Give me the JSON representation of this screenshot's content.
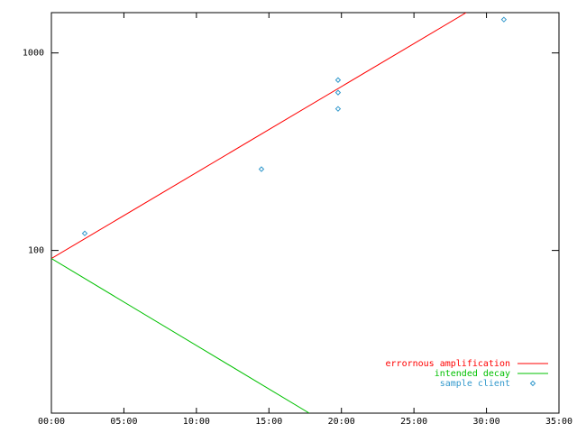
{
  "chart_data": {
    "type": "line",
    "ylog": true,
    "xlim": [
      0,
      2100
    ],
    "xticks": [
      {
        "value": 0,
        "label": "00:00"
      },
      {
        "value": 300,
        "label": "05:00"
      },
      {
        "value": 600,
        "label": "10:00"
      },
      {
        "value": 900,
        "label": "15:00"
      },
      {
        "value": 1200,
        "label": "20:00"
      },
      {
        "value": 1500,
        "label": "25:00"
      },
      {
        "value": 1800,
        "label": "30:00"
      },
      {
        "value": 2100,
        "label": "35:00"
      }
    ],
    "ylim": [
      15,
      1600
    ],
    "yticks": [
      100,
      1000
    ],
    "legend": "bottom-right",
    "series": [
      {
        "name": "errornous amplification",
        "color": "#ff0000",
        "style": "line",
        "x": [
          0,
          1716
        ],
        "values": [
          91,
          1600
        ]
      },
      {
        "name": "intended decay",
        "color": "#00c000",
        "style": "line",
        "x": [
          0,
          1067
        ],
        "values": [
          91,
          15
        ]
      },
      {
        "name": "sample client",
        "color": "#3399cc",
        "style": "points",
        "x": [
          138,
          869,
          1186,
          1186,
          1186,
          1872
        ],
        "values": [
          122,
          258,
          729,
          630,
          521,
          1476
        ]
      }
    ]
  }
}
